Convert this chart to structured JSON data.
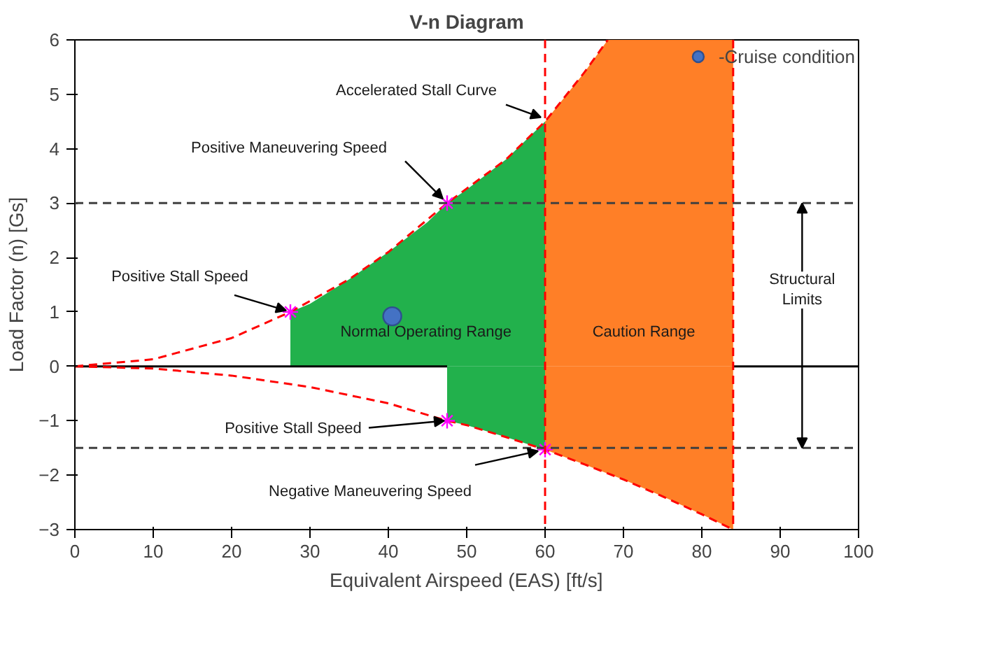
{
  "chart_data": {
    "type": "line",
    "title": "V-n Diagram",
    "xlabel": "Equivalent Airspeed (EAS) [ft/s]",
    "ylabel": "Load Factor (n) [Gs]",
    "xlim": [
      0,
      100
    ],
    "ylim": [
      -3,
      6
    ],
    "xticks": [
      0,
      10,
      20,
      30,
      40,
      50,
      60,
      70,
      80,
      90,
      100
    ],
    "yticks": [
      -3,
      -2,
      -1,
      0,
      1,
      2,
      3,
      4,
      5,
      6
    ],
    "legend": "top right",
    "series": [
      {
        "type": "area",
        "color": "#22b14c",
        "x": [
          27.5,
          30,
          35,
          40,
          45,
          47.5,
          50,
          55,
          60
        ],
        "values": [
          1.0,
          1.15,
          1.6,
          2.1,
          2.65,
          3.0,
          3.25,
          3.8,
          4.5
        ]
      },
      {
        "type": "area",
        "color": "#22b14c",
        "x": [
          47.5,
          50,
          55,
          60
        ],
        "values": [
          -1.0,
          -1.08,
          -1.3,
          -1.53
        ]
      },
      {
        "type": "area",
        "color": "#ff7f27",
        "x": [
          60,
          65,
          68,
          70,
          75,
          80,
          84
        ],
        "values": [
          4.5,
          5.4,
          6,
          6,
          6,
          6,
          6
        ]
      },
      {
        "type": "area",
        "color": "#ff7f27",
        "x": [
          60,
          65,
          68,
          70,
          75,
          80,
          84
        ],
        "values": [
          -1.53,
          -1.8,
          -1.97,
          -2.08,
          -2.39,
          -2.72,
          -3.0
        ]
      },
      {
        "color": "#000000",
        "line_style": "solid",
        "x": [
          0,
          47.5,
          66,
          84,
          100
        ],
        "values": [
          0,
          0,
          null,
          0,
          0
        ]
      },
      {
        "color": "#ff0000",
        "line_style": "dashed",
        "x": [
          0,
          10,
          20,
          27.5,
          35,
          40,
          47.5,
          55,
          60,
          65,
          68
        ],
        "values": [
          0,
          0.13,
          0.52,
          1.0,
          1.6,
          2.1,
          3.0,
          3.8,
          4.5,
          5.4,
          6.0
        ]
      },
      {
        "color": "#ff0000",
        "line_style": "dashed",
        "x": [
          0,
          10,
          20,
          30,
          40,
          47.5,
          50,
          55,
          60,
          65,
          70,
          75,
          80,
          84
        ],
        "values": [
          0,
          -0.04,
          -0.17,
          -0.38,
          -0.68,
          -1.0,
          -1.08,
          -1.3,
          -1.53,
          -1.8,
          -2.08,
          -2.39,
          -2.72,
          -3.0
        ]
      },
      {
        "type": "scatter",
        "color": "#ff00ff",
        "marker": "cross",
        "x": [
          27.5,
          47.5,
          47.5,
          60
        ],
        "values": [
          1.0,
          3.0,
          -1.0,
          -1.53
        ]
      },
      {
        "type": "scatter",
        "name": "-Cruise condition",
        "color": "#4472c4",
        "marker": "circle",
        "x": [
          40.5
        ],
        "values": [
          0.92
        ]
      }
    ],
    "ref_lines": [
      {
        "axis": "y",
        "value": 3,
        "color": "#404040",
        "line_style": "dashed"
      },
      {
        "axis": "y",
        "value": -1.5,
        "color": "#404040",
        "line_style": "dashed"
      },
      {
        "axis": "x",
        "value": 60,
        "color": "#ff0000",
        "line_style": "dashed"
      },
      {
        "axis": "x",
        "value": 84,
        "color": "#ff0000",
        "line_style": "dashed"
      }
    ],
    "annotations": [
      {
        "text": "Accelerated Stall Curve",
        "x": 60,
        "y": 4.5
      },
      {
        "text": "Positive Maneuvering Speed",
        "x": 47.5,
        "y": 3.0
      },
      {
        "text": "Positive Stall Speed",
        "x": 27.5,
        "y": 1.0
      },
      "Normal Operating Range",
      "Caution Range",
      {
        "text": "Positive Stall Speed",
        "x": 47.5,
        "y": -1.0
      },
      {
        "text": "Negative Maneuvering Speed",
        "x": 60,
        "y": -1.53
      },
      "Structural\nLimits"
    ]
  }
}
